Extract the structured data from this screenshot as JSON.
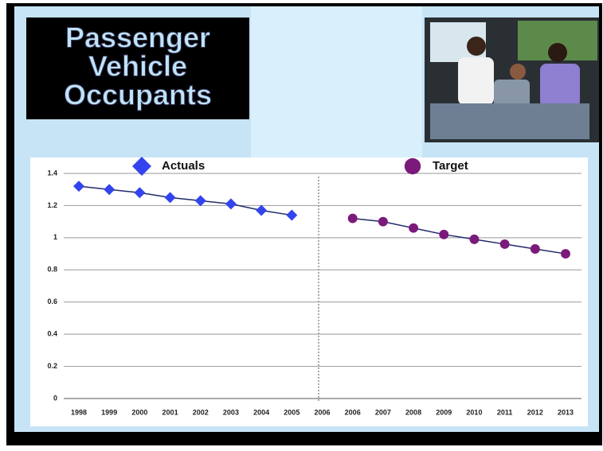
{
  "title_lines": [
    "Passenger",
    "Vehicle",
    "Occupants"
  ],
  "chart_data": {
    "type": "line",
    "categories": [
      "1998",
      "1999",
      "2000",
      "2001",
      "2002",
      "2003",
      "2004",
      "2005",
      "2006",
      "2006",
      "2007",
      "2008",
      "2009",
      "2010",
      "2011",
      "2012",
      "2013"
    ],
    "series": [
      {
        "name": "Actuals",
        "color": "#3344ee",
        "marker": "diamond",
        "values": [
          1.32,
          1.3,
          1.28,
          1.25,
          1.23,
          1.21,
          1.17,
          1.14,
          null,
          null,
          null,
          null,
          null,
          null,
          null,
          null,
          null
        ]
      },
      {
        "name": "Target",
        "color": "#7b1a7b",
        "marker": "circle",
        "values": [
          null,
          null,
          null,
          null,
          null,
          null,
          null,
          null,
          null,
          1.12,
          1.1,
          1.06,
          1.02,
          0.99,
          0.96,
          0.93,
          0.9
        ]
      }
    ],
    "line_color": "#1f2a6b",
    "ylim": [
      0,
      1.4
    ],
    "yticks": [
      0,
      0.2,
      0.4,
      0.6,
      0.8,
      1,
      1.2,
      1.4
    ],
    "grid": true
  }
}
